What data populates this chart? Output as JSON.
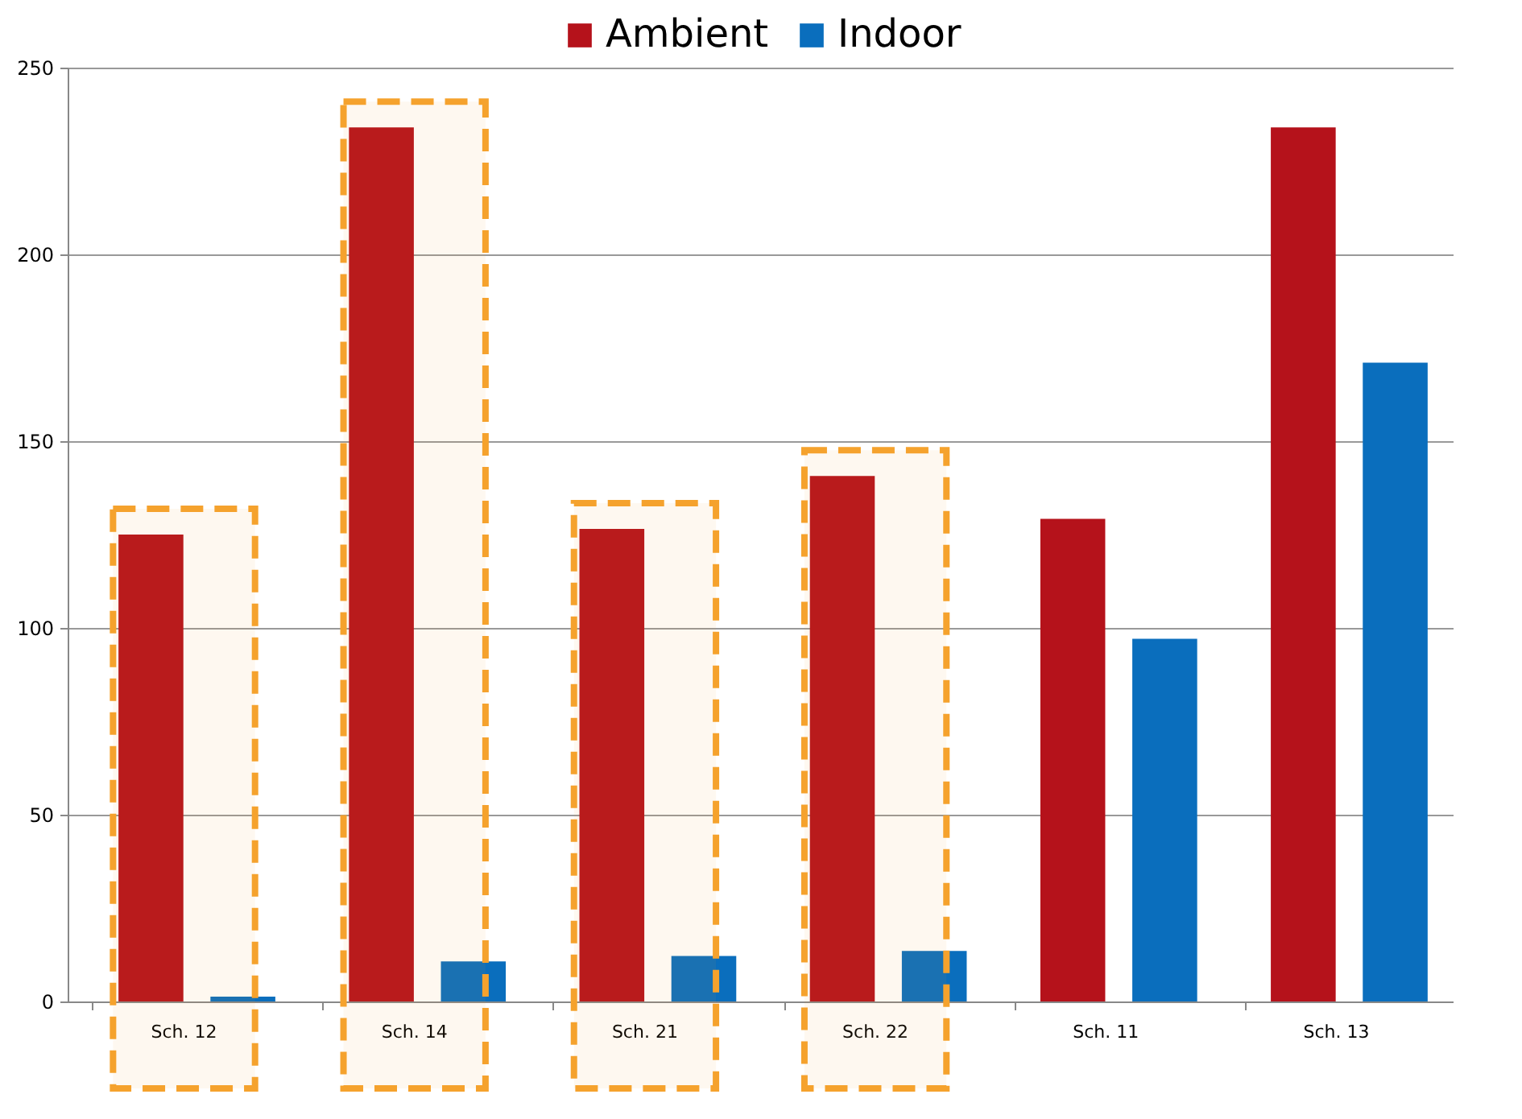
{
  "chart_data": {
    "type": "bar",
    "categories": [
      "Sch. 12",
      "Sch. 14",
      "Sch. 21",
      "Sch. 22",
      "Sch. 11",
      "Sch. 13"
    ],
    "series": [
      {
        "name": "Ambient",
        "color": "#b5121b",
        "values": [
          125,
          234,
          126.5,
          140.7,
          129.2,
          234
        ]
      },
      {
        "name": "Indoor",
        "color": "#0a6ebd",
        "values": [
          1.3,
          10.7,
          12.2,
          13.5,
          97.1,
          171
        ]
      }
    ],
    "ylim": [
      0,
      250
    ],
    "yticks": [
      0,
      50,
      100,
      150,
      200,
      250
    ],
    "grid": "y",
    "legend": "top",
    "bands": [
      {
        "axis": "x",
        "from": "Sch. 12",
        "to": "Sch. 12",
        "color": "#f5a22d"
      },
      {
        "axis": "x",
        "from": "Sch. 14",
        "to": "Sch. 14",
        "color": "#f5a22d"
      },
      {
        "axis": "x",
        "from": "Sch. 21",
        "to": "Sch. 21",
        "color": "#f5a22d"
      },
      {
        "axis": "x",
        "from": "Sch. 22",
        "to": "Sch. 22",
        "color": "#f5a22d"
      }
    ]
  }
}
